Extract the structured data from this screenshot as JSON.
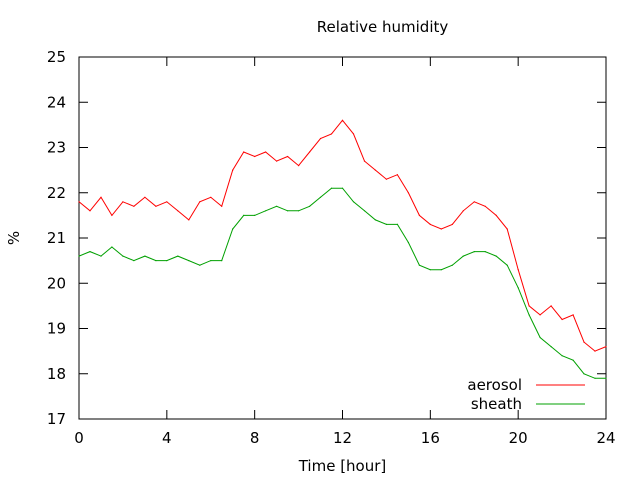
{
  "chart_data": {
    "type": "line",
    "title": "Relative humidity",
    "xlabel": "Time [hour]",
    "ylabel": "%",
    "xlim": [
      0,
      24
    ],
    "ylim": [
      17,
      25
    ],
    "x_ticks": [
      "0",
      "4",
      "8",
      "12",
      "16",
      "20",
      "24"
    ],
    "y_ticks": [
      "17",
      "18",
      "19",
      "20",
      "21",
      "22",
      "23",
      "24",
      "25"
    ],
    "grid": false,
    "legend_position": "bottom-right",
    "series": [
      {
        "name": "aerosol",
        "color": "#ff0000",
        "x": [
          0,
          0.5,
          1,
          1.5,
          2,
          2.5,
          3,
          3.5,
          4,
          4.5,
          5,
          5.5,
          6,
          6.5,
          7,
          7.5,
          8,
          8.5,
          9,
          9.5,
          10,
          10.5,
          11,
          11.5,
          12,
          12.5,
          13,
          13.5,
          14,
          14.5,
          15,
          15.5,
          16,
          16.5,
          17,
          17.5,
          18,
          18.5,
          19,
          19.5,
          20,
          20.5,
          21,
          21.5,
          22,
          22.5,
          23,
          23.5,
          24
        ],
        "values": [
          21.8,
          21.6,
          21.9,
          21.5,
          21.8,
          21.7,
          21.9,
          21.7,
          21.8,
          21.6,
          21.4,
          21.8,
          21.9,
          21.7,
          22.5,
          22.9,
          22.8,
          22.9,
          22.7,
          22.8,
          22.6,
          22.9,
          23.2,
          23.3,
          23.6,
          23.3,
          22.7,
          22.5,
          22.3,
          22.4,
          22.0,
          21.5,
          21.3,
          21.2,
          21.3,
          21.6,
          21.8,
          21.7,
          21.5,
          21.2,
          20.3,
          19.5,
          19.3,
          19.5,
          19.2,
          19.3,
          18.7,
          18.5,
          18.6
        ]
      },
      {
        "name": "sheath",
        "color": "#00a000",
        "x": [
          0,
          0.5,
          1,
          1.5,
          2,
          2.5,
          3,
          3.5,
          4,
          4.5,
          5,
          5.5,
          6,
          6.5,
          7,
          7.5,
          8,
          8.5,
          9,
          9.5,
          10,
          10.5,
          11,
          11.5,
          12,
          12.5,
          13,
          13.5,
          14,
          14.5,
          15,
          15.5,
          16,
          16.5,
          17,
          17.5,
          18,
          18.5,
          19,
          19.5,
          20,
          20.5,
          21,
          21.5,
          22,
          22.5,
          23,
          23.5,
          24
        ],
        "values": [
          20.6,
          20.7,
          20.6,
          20.8,
          20.6,
          20.5,
          20.6,
          20.5,
          20.5,
          20.6,
          20.5,
          20.4,
          20.5,
          20.5,
          21.2,
          21.5,
          21.5,
          21.6,
          21.7,
          21.6,
          21.6,
          21.7,
          21.9,
          22.1,
          22.1,
          21.8,
          21.6,
          21.4,
          21.3,
          21.3,
          20.9,
          20.4,
          20.3,
          20.3,
          20.4,
          20.6,
          20.7,
          20.7,
          20.6,
          20.4,
          19.9,
          19.3,
          18.8,
          18.6,
          18.4,
          18.3,
          18.0,
          17.9,
          17.9
        ]
      }
    ]
  }
}
